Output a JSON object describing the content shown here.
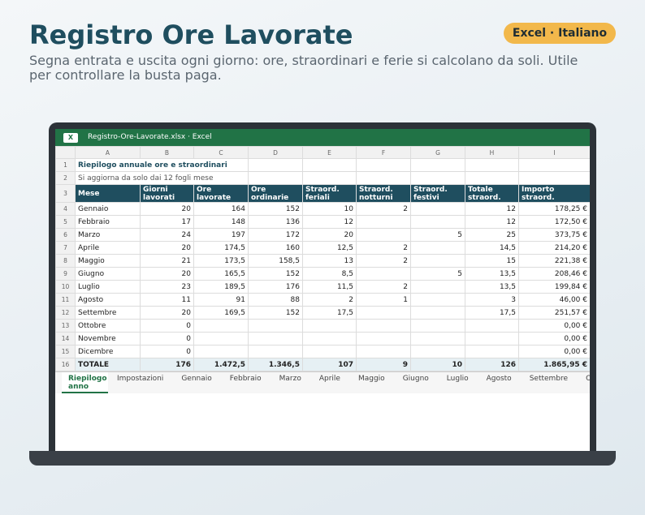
{
  "header": {
    "title": "Registro Ore Lavorate",
    "subtitle": "Segna entrata e uscita ogni giorno: ore, straordinari e ferie si calcolano da soli. Utile per controllare la busta paga.",
    "badge": "Excel · Italiano"
  },
  "window": {
    "icon": "X",
    "title": "Registro-Ore-Lavorate.xlsx · Excel"
  },
  "table": {
    "columns": [
      "A",
      "B",
      "C",
      "D",
      "E",
      "F",
      "G",
      "H",
      "I"
    ],
    "row_numbers": [
      "1",
      "2",
      "3",
      "4",
      "5",
      "6",
      "7",
      "8",
      "9",
      "10",
      "11",
      "12",
      "13",
      "14",
      "15",
      "16"
    ],
    "rows": [
      [
        "Riepilogo annuale ore e straordinari",
        null,
        null,
        null,
        null,
        null,
        null,
        null,
        null
      ],
      [
        "Si aggiorna da solo dai 12 fogli mese",
        null,
        null,
        null,
        null,
        null,
        null,
        null,
        null
      ],
      [
        "Mese",
        "Giorni lavorati",
        "Ore lavorate",
        "Ore ordinarie",
        "Straord. feriali",
        "Straord. notturni",
        "Straord. festivi",
        "Totale straord.",
        "Importo straord."
      ],
      [
        "Gennaio",
        "20",
        "164",
        "152",
        "10",
        "2",
        null,
        "12",
        "178,25 €"
      ],
      [
        "Febbraio",
        "17",
        "148",
        "136",
        "12",
        null,
        null,
        "12",
        "172,50 €"
      ],
      [
        "Marzo",
        "24",
        "197",
        "172",
        "20",
        null,
        "5",
        "25",
        "373,75 €"
      ],
      [
        "Aprile",
        "20",
        "174,5",
        "160",
        "12,5",
        "2",
        null,
        "14,5",
        "214,20 €"
      ],
      [
        "Maggio",
        "21",
        "173,5",
        "158,5",
        "13",
        "2",
        null,
        "15",
        "221,38 €"
      ],
      [
        "Giugno",
        "20",
        "165,5",
        "152",
        "8,5",
        null,
        "5",
        "13,5",
        "208,46 €"
      ],
      [
        "Luglio",
        "23",
        "189,5",
        "176",
        "11,5",
        "2",
        null,
        "13,5",
        "199,84 €"
      ],
      [
        "Agosto",
        "11",
        "91",
        "88",
        "2",
        "1",
        null,
        "3",
        "46,00 €"
      ],
      [
        "Settembre",
        "20",
        "169,5",
        "152",
        "17,5",
        null,
        null,
        "17,5",
        "251,57 €"
      ],
      [
        "Ottobre",
        "0",
        null,
        null,
        null,
        null,
        null,
        null,
        "0,00 €"
      ],
      [
        "Novembre",
        "0",
        null,
        null,
        null,
        null,
        null,
        null,
        "0,00 €"
      ],
      [
        "Dicembre",
        "0",
        null,
        null,
        null,
        null,
        null,
        null,
        "0,00 €"
      ],
      [
        "TOTALE",
        "176",
        "1.472,5",
        "1.346,5",
        "107",
        "9",
        "10",
        "126",
        "1.865,95 €"
      ]
    ]
  },
  "tabs": [
    "Riepilogo anno",
    "Impostazioni",
    "Gennaio",
    "Febbraio",
    "Marzo",
    "Aprile",
    "Maggio",
    "Giugno",
    "Luglio",
    "Agosto",
    "Settembre",
    "Ottobre"
  ]
}
